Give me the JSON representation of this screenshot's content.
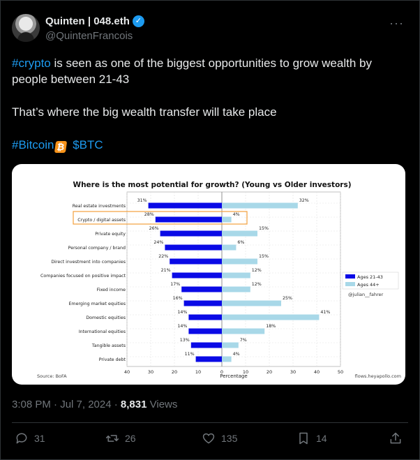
{
  "author": {
    "name": "Quinten | 048.eth",
    "handle": "@QuintenFrancois",
    "verified_icon": "verified-badge-icon"
  },
  "more_icon": "···",
  "tweet": {
    "line1_hashtag": "#crypto",
    "line1_rest": " is seen as one of the biggest opportunities to grow wealth by people between 21-43",
    "line2": "That’s where the big wealth transfer will take place",
    "tag_bitcoin": "#Bitcoin",
    "bitcoin_emoji": "₿",
    "tag_btc": "$BTC"
  },
  "meta": {
    "time": "3:08 PM · Jul 7, 2024 · ",
    "views_count": "8,831",
    "views_label": " Views"
  },
  "actions": {
    "replies": "31",
    "reposts": "26",
    "likes": "135",
    "bookmarks": "14"
  },
  "colors": {
    "accent": "#1d9bf0",
    "young": "#0a0ae6",
    "old": "#a8d8e8",
    "highlight": "#f2a03d"
  },
  "chart_data": {
    "type": "bar",
    "title": "Where is the most potential for growth? (Young vs Older investors)",
    "categories": [
      "Real estate investments",
      "Crypto / digital assets",
      "Private equity",
      "Personal company / brand",
      "Direct investment into companies",
      "Companies focused on positive impact",
      "Fixed income",
      "Emerging market equities",
      "Domestic equities",
      "International equities",
      "Tangible assets",
      "Private debt"
    ],
    "series": [
      {
        "name": "Ages 21-43",
        "values": [
          31,
          28,
          26,
          24,
          22,
          21,
          17,
          16,
          14,
          14,
          13,
          11
        ],
        "color": "#0a0ae6"
      },
      {
        "name": "Ages 44+",
        "values": [
          32,
          4,
          15,
          6,
          15,
          12,
          12,
          25,
          41,
          18,
          7,
          4
        ],
        "color": "#a8d8e8"
      }
    ],
    "xlabel": "Percentage",
    "xticks_left": [
      "40",
      "30",
      "20",
      "10"
    ],
    "xticks_right": [
      "0",
      "10",
      "20",
      "30",
      "40",
      "50"
    ],
    "xlim_left": 40,
    "xlim_right": 50,
    "highlight_category": "Crypto / digital assets",
    "legend": "right",
    "watermark": "@julian__fahrer",
    "source": "Source: BoFA",
    "credit": "flows.heyapollo.com"
  }
}
